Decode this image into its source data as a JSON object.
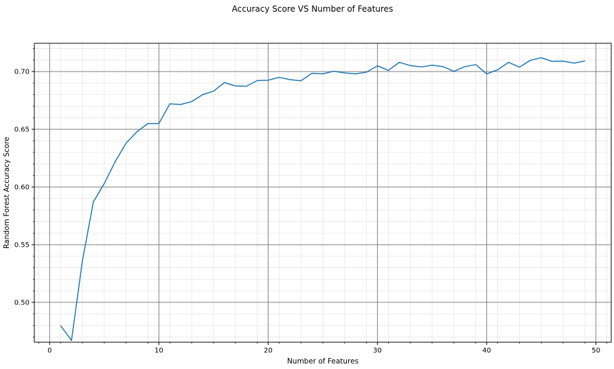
{
  "chart_data": {
    "type": "line",
    "title": "Accuracy Score VS Number of Features",
    "xlabel": "Number of Features",
    "ylabel": "Random Forest Accuracy Score",
    "xlim": [
      -1.4,
      51.4
    ],
    "ylim": [
      0.4655,
      0.7245
    ],
    "xticks": [
      0,
      10,
      20,
      30,
      40,
      50
    ],
    "yticks": [
      0.5,
      0.55,
      0.6,
      0.65,
      0.7
    ],
    "xtick_labels": [
      "0",
      "10",
      "20",
      "30",
      "40",
      "50"
    ],
    "ytick_labels": [
      "0.50",
      "0.55",
      "0.60",
      "0.65",
      "0.70"
    ],
    "grid": {
      "major": true,
      "minor": true
    },
    "line_color": "#1f77b4",
    "series": [
      {
        "x": [
          1,
          2,
          3,
          4,
          5,
          6,
          7,
          8,
          9,
          10,
          11,
          12,
          13,
          14,
          15,
          16,
          17,
          18,
          19,
          20,
          21,
          22,
          23,
          24,
          25,
          26,
          27,
          28,
          29,
          30,
          31,
          32,
          33,
          34,
          35,
          36,
          37,
          38,
          39,
          40,
          41,
          42,
          43,
          44,
          45,
          46,
          47,
          48,
          49
        ],
        "values": [
          0.48,
          0.467,
          0.536,
          0.587,
          0.603,
          0.622,
          0.638,
          0.648,
          0.655,
          0.655,
          0.672,
          0.6715,
          0.674,
          0.68,
          0.683,
          0.6905,
          0.6875,
          0.6873,
          0.6922,
          0.6925,
          0.695,
          0.693,
          0.692,
          0.6985,
          0.698,
          0.7003,
          0.6988,
          0.698,
          0.6995,
          0.705,
          0.701,
          0.708,
          0.7052,
          0.704,
          0.7055,
          0.7043,
          0.7002,
          0.7043,
          0.706,
          0.698,
          0.7015,
          0.708,
          0.7038,
          0.7098,
          0.712,
          0.7088,
          0.709,
          0.7073,
          0.7092
        ]
      }
    ]
  }
}
